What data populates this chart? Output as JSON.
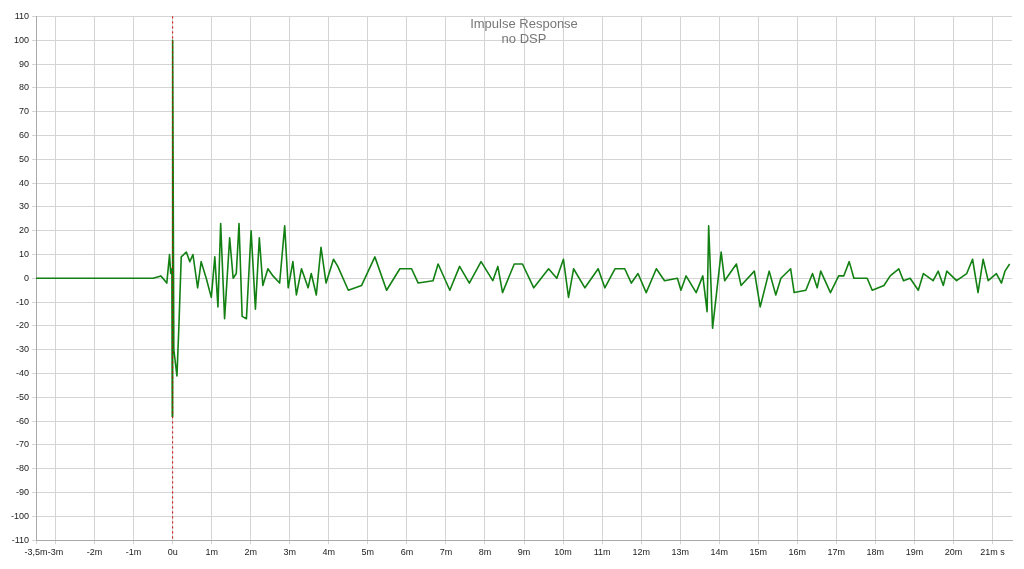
{
  "chart_data": {
    "type": "line",
    "title": "Impulse Response",
    "subtitle": "no DSP",
    "xlim": [
      -3.5,
      21.5
    ],
    "xticks": [
      {
        "value": -3.5,
        "label": "-3,5m"
      },
      {
        "value": -3,
        "label": "-3m"
      },
      {
        "value": -2,
        "label": "-2m"
      },
      {
        "value": -1,
        "label": "-1m"
      },
      {
        "value": 0,
        "label": "0u"
      },
      {
        "value": 1,
        "label": "1m"
      },
      {
        "value": 2,
        "label": "2m"
      },
      {
        "value": 3,
        "label": "3m"
      },
      {
        "value": 4,
        "label": "4m"
      },
      {
        "value": 5,
        "label": "5m"
      },
      {
        "value": 6,
        "label": "6m"
      },
      {
        "value": 7,
        "label": "7m"
      },
      {
        "value": 8,
        "label": "8m"
      },
      {
        "value": 9,
        "label": "9m"
      },
      {
        "value": 10,
        "label": "10m"
      },
      {
        "value": 11,
        "label": "11m"
      },
      {
        "value": 12,
        "label": "12m"
      },
      {
        "value": 13,
        "label": "13m"
      },
      {
        "value": 14,
        "label": "14m"
      },
      {
        "value": 15,
        "label": "15m"
      },
      {
        "value": 16,
        "label": "16m"
      },
      {
        "value": 17,
        "label": "17m"
      },
      {
        "value": 18,
        "label": "18m"
      },
      {
        "value": 19,
        "label": "19m"
      },
      {
        "value": 20,
        "label": "20m"
      },
      {
        "value": 21,
        "label": "21m s"
      }
    ],
    "ylim": [
      -110,
      110
    ],
    "yticks": [
      -110,
      -100,
      -90,
      -80,
      -70,
      -60,
      -50,
      -40,
      -30,
      -20,
      -10,
      0,
      10,
      20,
      30,
      40,
      50,
      60,
      70,
      80,
      90,
      100,
      110
    ],
    "grid": true,
    "legend": false,
    "marker": "none",
    "line_style": "solid",
    "ref_lines": [
      {
        "axis": "x",
        "value": 0,
        "color": "#cc0000",
        "line_style": "dotted"
      }
    ],
    "series": [
      {
        "color": "#138013",
        "x": [
          -3.5,
          -0.5,
          -0.3,
          -0.15,
          -0.08,
          -0.05,
          -0.02,
          -0.01,
          0,
          0.03,
          0.11,
          0.16,
          0.22,
          0.35,
          0.44,
          0.52,
          0.64,
          0.73,
          0.86,
          0.99,
          1.08,
          1.16,
          1.23,
          1.33,
          1.46,
          1.55,
          1.63,
          1.7,
          1.78,
          1.89,
          2.01,
          2.12,
          2.22,
          2.31,
          2.44,
          2.57,
          2.74,
          2.87,
          2.96,
          3.08,
          3.17,
          3.3,
          3.47,
          3.55,
          3.68,
          3.8,
          3.93,
          4.12,
          4.23,
          4.5,
          4.84,
          5.18,
          5.48,
          5.82,
          6.12,
          6.29,
          6.67,
          6.8,
          7.1,
          7.35,
          7.6,
          7.9,
          8.2,
          8.33,
          8.45,
          8.75,
          8.96,
          9.25,
          9.63,
          9.84,
          10.01,
          10.14,
          10.27,
          10.56,
          10.9,
          11.07,
          11.33,
          11.58,
          11.75,
          11.92,
          12.13,
          12.39,
          12.6,
          12.93,
          13.02,
          13.15,
          13.41,
          13.58,
          13.69,
          13.73,
          13.79,
          13.83,
          14.05,
          14.14,
          14.44,
          14.56,
          14.9,
          15.05,
          15.28,
          15.45,
          15.58,
          15.83,
          15.92,
          16.22,
          16.39,
          16.51,
          16.6,
          16.85,
          17.06,
          17.19,
          17.33,
          17.45,
          17.79,
          17.92,
          18.22,
          18.38,
          18.6,
          18.72,
          18.89,
          19.1,
          19.23,
          19.48,
          19.61,
          19.74,
          19.83,
          20.08,
          20.34,
          20.49,
          20.63,
          20.76,
          20.89,
          21.1,
          21.23,
          21.32,
          21.44
        ],
        "values": [
          0,
          0,
          1,
          -2,
          10,
          2,
          4,
          -58,
          100,
          -30,
          -41,
          -20,
          9,
          11,
          7,
          10,
          -4,
          7,
          0,
          -8,
          9,
          -12,
          23,
          -17,
          17,
          0,
          2,
          23,
          -16,
          -17,
          20,
          -13,
          17,
          -3,
          4,
          1,
          -2,
          22,
          -4,
          7,
          -7,
          4,
          -4,
          2,
          -7,
          13,
          -2,
          8,
          5,
          -5,
          -3,
          9,
          -5,
          4,
          4,
          -2,
          -1,
          6,
          -5,
          5,
          -2,
          7,
          -1,
          5,
          -6,
          6,
          6,
          -4,
          4,
          0,
          8,
          -8,
          4,
          -4,
          4,
          -4,
          4,
          4,
          -2,
          2,
          -6,
          4,
          -1,
          0,
          -5,
          1,
          -6,
          1,
          -14,
          22,
          -3,
          -21,
          11,
          -1,
          6,
          -3,
          3,
          -12,
          3,
          -7,
          0,
          4,
          -6,
          -5,
          2,
          -4,
          3,
          -6,
          1,
          1,
          7,
          0,
          0,
          -5,
          -3,
          1,
          4,
          -1,
          0,
          -5,
          2,
          -1,
          3,
          -3,
          3,
          -1,
          2,
          8,
          -6,
          8,
          -1,
          2,
          -2,
          3,
          6
        ]
      }
    ]
  }
}
